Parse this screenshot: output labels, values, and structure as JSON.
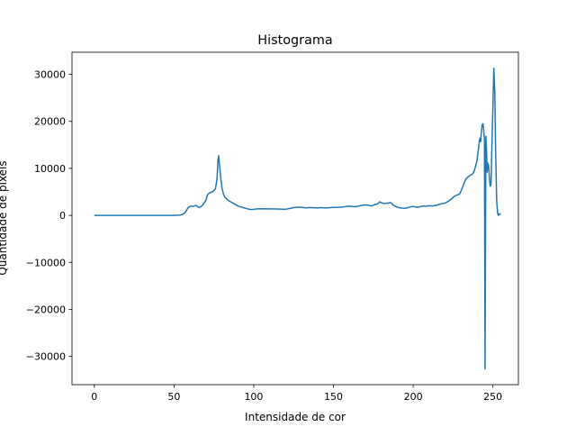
{
  "chart_data": {
    "type": "line",
    "title": "Histograma",
    "xlabel": "Intensidade de cor",
    "ylabel": "Quantidade de pixels",
    "xlim": [
      -14,
      266
    ],
    "ylim": [
      -36000,
      34700
    ],
    "xticks": [
      0,
      50,
      100,
      150,
      200,
      250
    ],
    "yticks": [
      -30000,
      -20000,
      -10000,
      0,
      10000,
      20000,
      30000
    ],
    "grid": false,
    "series_color": "#1f77b4",
    "points": [
      [
        0,
        0
      ],
      [
        10,
        0
      ],
      [
        20,
        0
      ],
      [
        30,
        0
      ],
      [
        40,
        0
      ],
      [
        50,
        0
      ],
      [
        53,
        50
      ],
      [
        55,
        150
      ],
      [
        57,
        600
      ],
      [
        58,
        1200
      ],
      [
        59,
        1700
      ],
      [
        60,
        1900
      ],
      [
        61,
        2000
      ],
      [
        62,
        1900
      ],
      [
        63,
        2050
      ],
      [
        64,
        2100
      ],
      [
        65,
        1800
      ],
      [
        66,
        1700
      ],
      [
        67,
        1900
      ],
      [
        68,
        2200
      ],
      [
        69,
        2700
      ],
      [
        70,
        3200
      ],
      [
        71,
        4400
      ],
      [
        72,
        4700
      ],
      [
        73,
        4900
      ],
      [
        74,
        5000
      ],
      [
        75,
        5300
      ],
      [
        76,
        5700
      ],
      [
        77,
        7800
      ],
      [
        77.5,
        11500
      ],
      [
        78,
        12700
      ],
      [
        79,
        9000
      ],
      [
        80,
        6000
      ],
      [
        81,
        4500
      ],
      [
        82,
        3800
      ],
      [
        84,
        3200
      ],
      [
        86,
        2800
      ],
      [
        88,
        2400
      ],
      [
        90,
        2000
      ],
      [
        92,
        1800
      ],
      [
        94,
        1600
      ],
      [
        96,
        1400
      ],
      [
        98,
        1250
      ],
      [
        100,
        1300
      ],
      [
        102,
        1380
      ],
      [
        105,
        1420
      ],
      [
        110,
        1380
      ],
      [
        115,
        1350
      ],
      [
        120,
        1300
      ],
      [
        123,
        1500
      ],
      [
        125,
        1650
      ],
      [
        128,
        1750
      ],
      [
        130,
        1700
      ],
      [
        133,
        1600
      ],
      [
        135,
        1680
      ],
      [
        138,
        1620
      ],
      [
        140,
        1580
      ],
      [
        142,
        1650
      ],
      [
        145,
        1580
      ],
      [
        150,
        1700
      ],
      [
        155,
        1750
      ],
      [
        158,
        1900
      ],
      [
        160,
        1950
      ],
      [
        162,
        1900
      ],
      [
        164,
        1850
      ],
      [
        166,
        2000
      ],
      [
        168,
        2150
      ],
      [
        170,
        2250
      ],
      [
        172,
        2150
      ],
      [
        174,
        2000
      ],
      [
        176,
        2300
      ],
      [
        178,
        2500
      ],
      [
        179,
        2900
      ],
      [
        180,
        2700
      ],
      [
        182,
        2500
      ],
      [
        184,
        2600
      ],
      [
        186,
        2700
      ],
      [
        187,
        2300
      ],
      [
        189,
        1900
      ],
      [
        191,
        1650
      ],
      [
        193,
        1550
      ],
      [
        195,
        1500
      ],
      [
        197,
        1700
      ],
      [
        199,
        1850
      ],
      [
        200,
        1900
      ],
      [
        202,
        1750
      ],
      [
        204,
        1800
      ],
      [
        206,
        2000
      ],
      [
        208,
        1950
      ],
      [
        210,
        2050
      ],
      [
        212,
        2000
      ],
      [
        214,
        2100
      ],
      [
        216,
        2300
      ],
      [
        218,
        2500
      ],
      [
        220,
        2600
      ],
      [
        222,
        3000
      ],
      [
        224,
        3500
      ],
      [
        226,
        4100
      ],
      [
        228,
        4400
      ],
      [
        229,
        4500
      ],
      [
        230,
        5200
      ],
      [
        231,
        6000
      ],
      [
        232,
        6900
      ],
      [
        233,
        7700
      ],
      [
        234,
        8100
      ],
      [
        235,
        8300
      ],
      [
        236,
        8600
      ],
      [
        237,
        8700
      ],
      [
        238,
        9200
      ],
      [
        239,
        10300
      ],
      [
        240,
        11600
      ],
      [
        241,
        14300
      ],
      [
        241.8,
        16400
      ],
      [
        242.3,
        15700
      ],
      [
        242.8,
        17800
      ],
      [
        243.3,
        19300
      ],
      [
        243.8,
        19500
      ],
      [
        244.3,
        17800
      ],
      [
        244.7,
        16300
      ],
      [
        245.1,
        -32700
      ],
      [
        245.6,
        16800
      ],
      [
        246,
        13800
      ],
      [
        246.4,
        9200
      ],
      [
        246.8,
        11100
      ],
      [
        247.3,
        10700
      ],
      [
        247.8,
        8000
      ],
      [
        248.3,
        6200
      ],
      [
        248.8,
        6600
      ],
      [
        249.4,
        15000
      ],
      [
        250,
        23000
      ],
      [
        250.6,
        31300
      ],
      [
        251.2,
        26000
      ],
      [
        251.8,
        12000
      ],
      [
        252.4,
        3000
      ],
      [
        253,
        400
      ],
      [
        253.5,
        0
      ],
      [
        254,
        350
      ],
      [
        255,
        200
      ]
    ]
  }
}
